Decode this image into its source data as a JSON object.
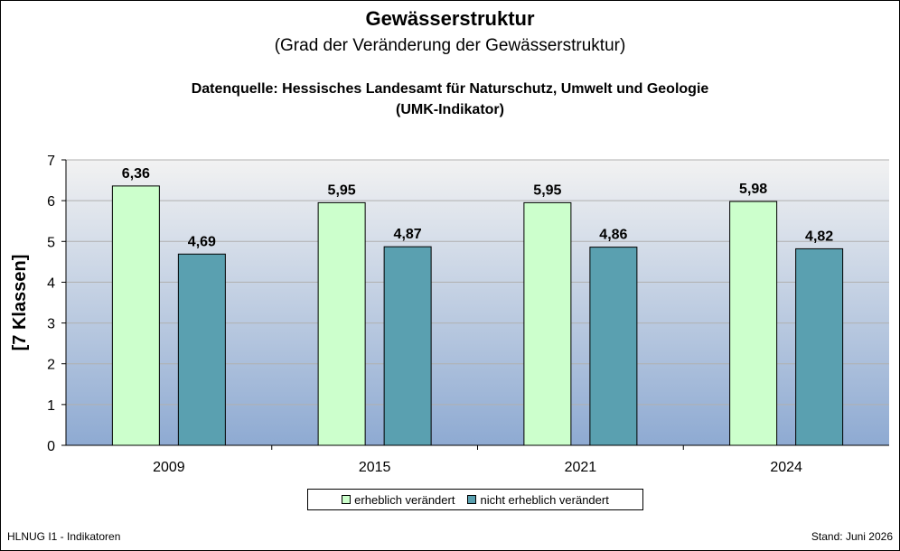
{
  "header": {
    "title": "Gewässerstruktur",
    "subtitle": "(Grad der Veränderung der Gewässerstruktur)",
    "source_line1": "Datenquelle: Hessisches Landesamt für Naturschutz, Umwelt und Geologie",
    "source_line2": "(UMK-Indikator)"
  },
  "footer": {
    "left": "HLNUG I1 - Indikatoren",
    "right": "Stand: Juni 2026"
  },
  "colors": {
    "series1": "#ccffcc",
    "series2": "#5aa0b0",
    "plot_top": "#f2f2f2",
    "plot_bottom": "#8eaad2"
  },
  "chart_data": {
    "type": "bar",
    "categories": [
      "2009",
      "2015",
      "2021",
      "2024"
    ],
    "series": [
      {
        "name": "erheblich verändert",
        "values": [
          6.36,
          5.95,
          5.95,
          5.98
        ],
        "labels": [
          "6,36",
          "5,95",
          "5,95",
          "5,98"
        ]
      },
      {
        "name": "nicht erheblich verändert",
        "values": [
          4.69,
          4.87,
          4.86,
          4.82
        ],
        "labels": [
          "4,69",
          "4,87",
          "4,86",
          "4,82"
        ]
      }
    ],
    "ylabel": "[7 Klassen]",
    "xlabel": "",
    "ylim": [
      0,
      7
    ],
    "yticks": [
      "0",
      "1",
      "2",
      "3",
      "4",
      "5",
      "6",
      "7"
    ],
    "grid": true,
    "legend": "bottom"
  }
}
